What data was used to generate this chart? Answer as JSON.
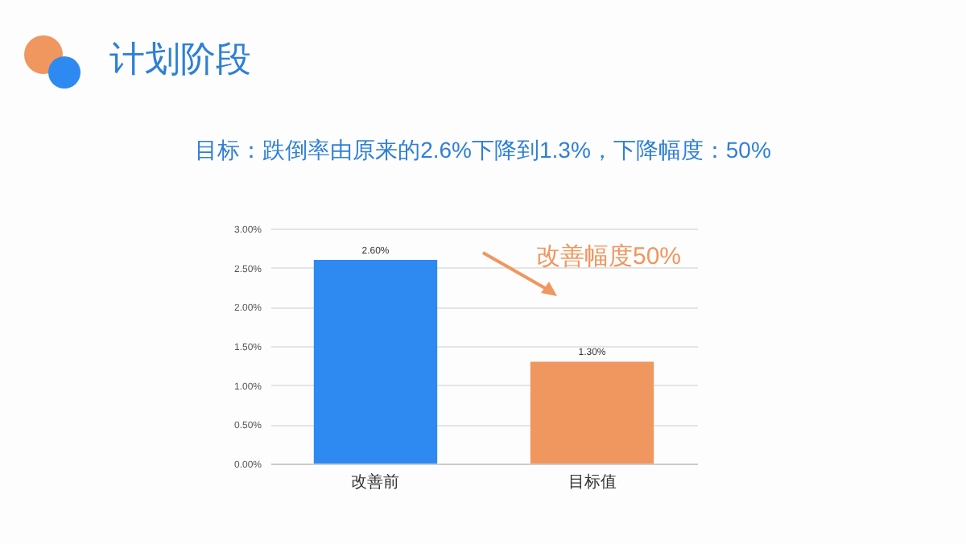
{
  "chart_data": {
    "type": "bar",
    "title": "计划阶段",
    "subtitle": "目标：跌倒率由原来的2.6%下降到1.3%，下降幅度：50%",
    "categories": [
      "改善前",
      "目标值"
    ],
    "values": [
      2.6,
      1.3
    ],
    "colors": [
      "#2e89f0",
      "#f0965f"
    ],
    "value_labels": [
      "2.60%",
      "1.30%"
    ],
    "ylim": [
      0,
      3
    ],
    "yticks": [
      {
        "value": 0,
        "label": "0.00%"
      },
      {
        "value": 0.5,
        "label": "0.50%"
      },
      {
        "value": 1,
        "label": "1.00%"
      },
      {
        "value": 1.5,
        "label": "1.50%"
      },
      {
        "value": 2,
        "label": "2.00%"
      },
      {
        "value": 2.5,
        "label": "2.50%"
      },
      {
        "value": 3,
        "label": "3.00%"
      }
    ],
    "grid": "y",
    "annotations": [
      "改善幅度50%"
    ]
  }
}
